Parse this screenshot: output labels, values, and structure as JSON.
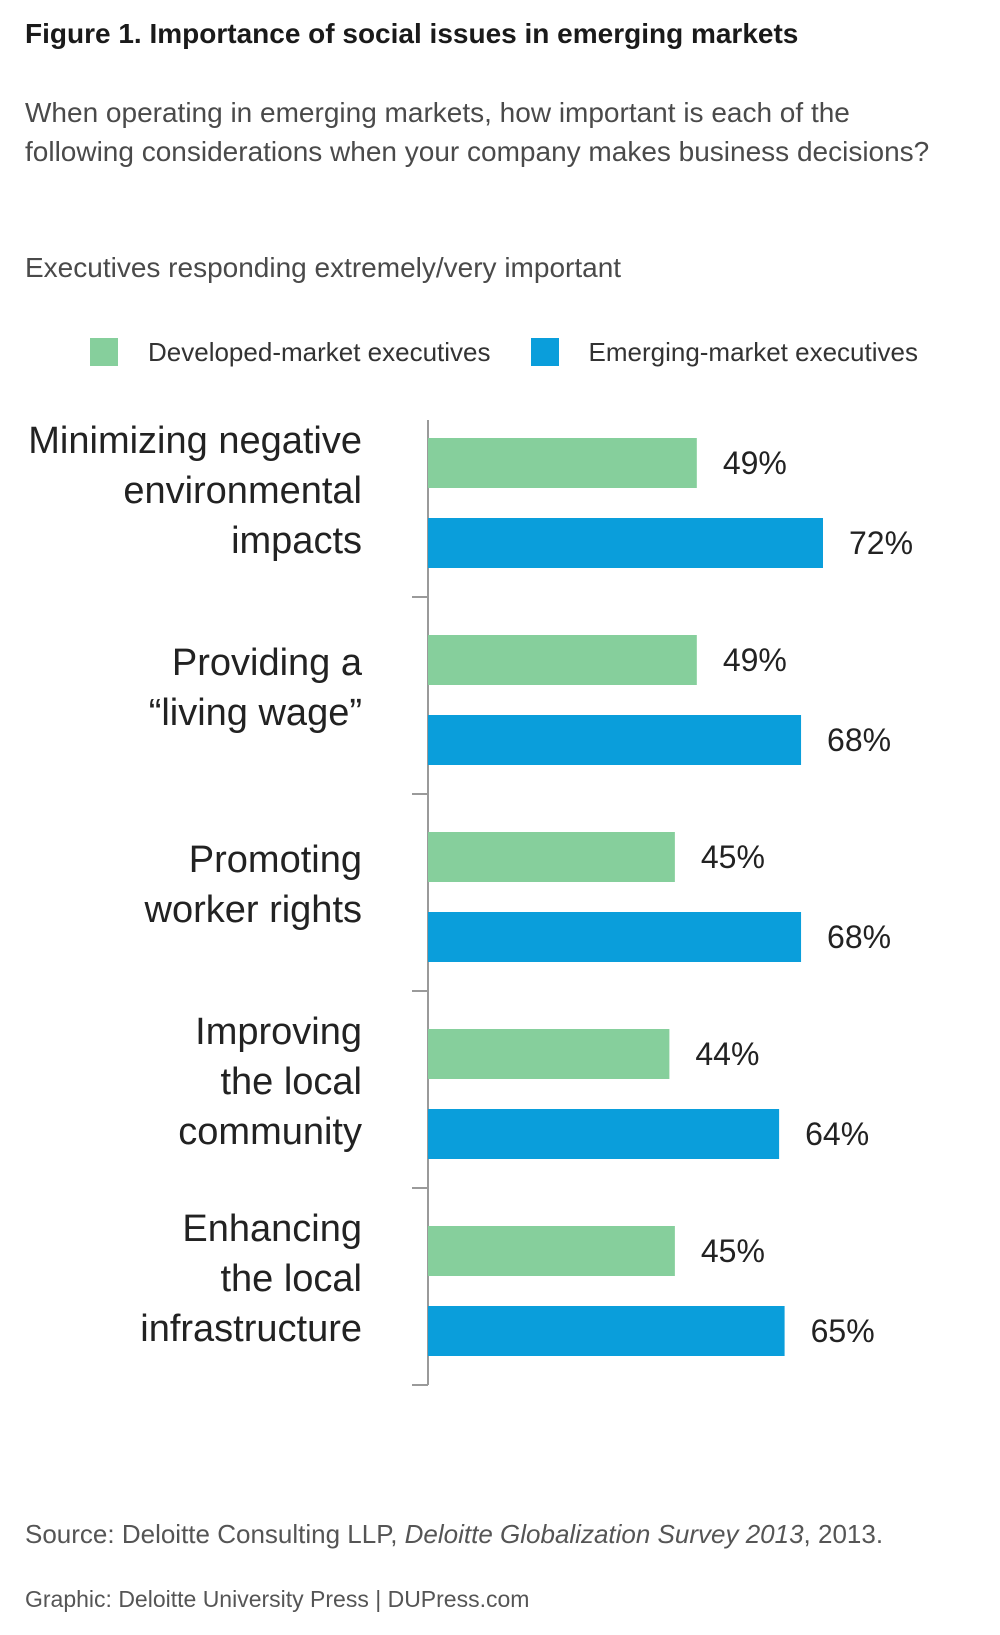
{
  "header": {
    "title": "Figure 1. Importance of social issues in emerging markets",
    "question": "When operating in emerging markets, how important is each of the following considerations when your company makes business decisions?",
    "subtitle": "Executives responding extremely/very important"
  },
  "colors": {
    "developed": "#86cf9c",
    "emerging": "#0a9edb"
  },
  "chart_data": {
    "type": "bar",
    "orientation": "horizontal",
    "categories": [
      "Minimizing negative environmental impacts",
      "Providing a “living wage”",
      "Promoting worker rights",
      "Improving the local community",
      "Enhancing the local infrastructure"
    ],
    "category_lines": [
      [
        "Minimizing negative",
        "environmental",
        "impacts"
      ],
      [
        "Providing a",
        "“living wage”"
      ],
      [
        "Promoting",
        "worker rights"
      ],
      [
        "Improving",
        "the local",
        "community"
      ],
      [
        "Enhancing",
        "the local",
        "infrastructure"
      ]
    ],
    "series": [
      {
        "name": "Developed-market executives",
        "values": [
          49,
          49,
          45,
          44,
          45
        ],
        "labels": [
          "49%",
          "49%",
          "45%",
          "44%",
          "45%"
        ]
      },
      {
        "name": "Emerging-market executives",
        "values": [
          72,
          68,
          68,
          64,
          65
        ],
        "labels": [
          "72%",
          "68%",
          "68%",
          "64%",
          "65%"
        ]
      }
    ],
    "legend_position": "top",
    "grid": false,
    "xlim": [
      0,
      100
    ]
  },
  "footer": {
    "source_prefix": "Source: Deloitte Consulting LLP, ",
    "source_italic": "Deloitte Globalization Survey 2013",
    "source_suffix": ", 2013.",
    "credit": "Graphic: Deloitte University Press  |  DUPress.com"
  }
}
